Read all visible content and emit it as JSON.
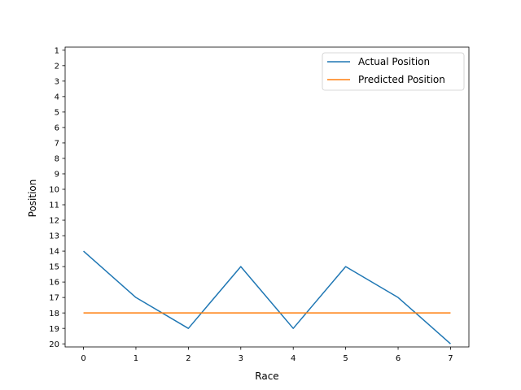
{
  "chart_data": {
    "type": "line",
    "xlabel": "Race",
    "ylabel": "Position",
    "x": [
      0,
      1,
      2,
      3,
      4,
      5,
      6,
      7
    ],
    "xlim": [
      -0.35,
      7.35
    ],
    "ylim": [
      20.2,
      0.8
    ],
    "y_inverted": true,
    "xticks": [
      0,
      1,
      2,
      3,
      4,
      5,
      6,
      7
    ],
    "yticks": [
      1,
      2,
      3,
      4,
      5,
      6,
      7,
      8,
      9,
      10,
      11,
      12,
      13,
      14,
      15,
      16,
      17,
      18,
      19,
      20
    ],
    "grid": false,
    "legend_position": "top-right",
    "series": [
      {
        "name": "Actual Position",
        "color": "#1f77b4",
        "values": [
          14,
          17,
          19,
          15,
          19,
          15,
          17,
          20
        ]
      },
      {
        "name": "Predicted Position",
        "color": "#ff7f0e",
        "values": [
          18,
          18,
          18,
          18,
          18,
          18,
          18,
          18
        ]
      }
    ]
  }
}
